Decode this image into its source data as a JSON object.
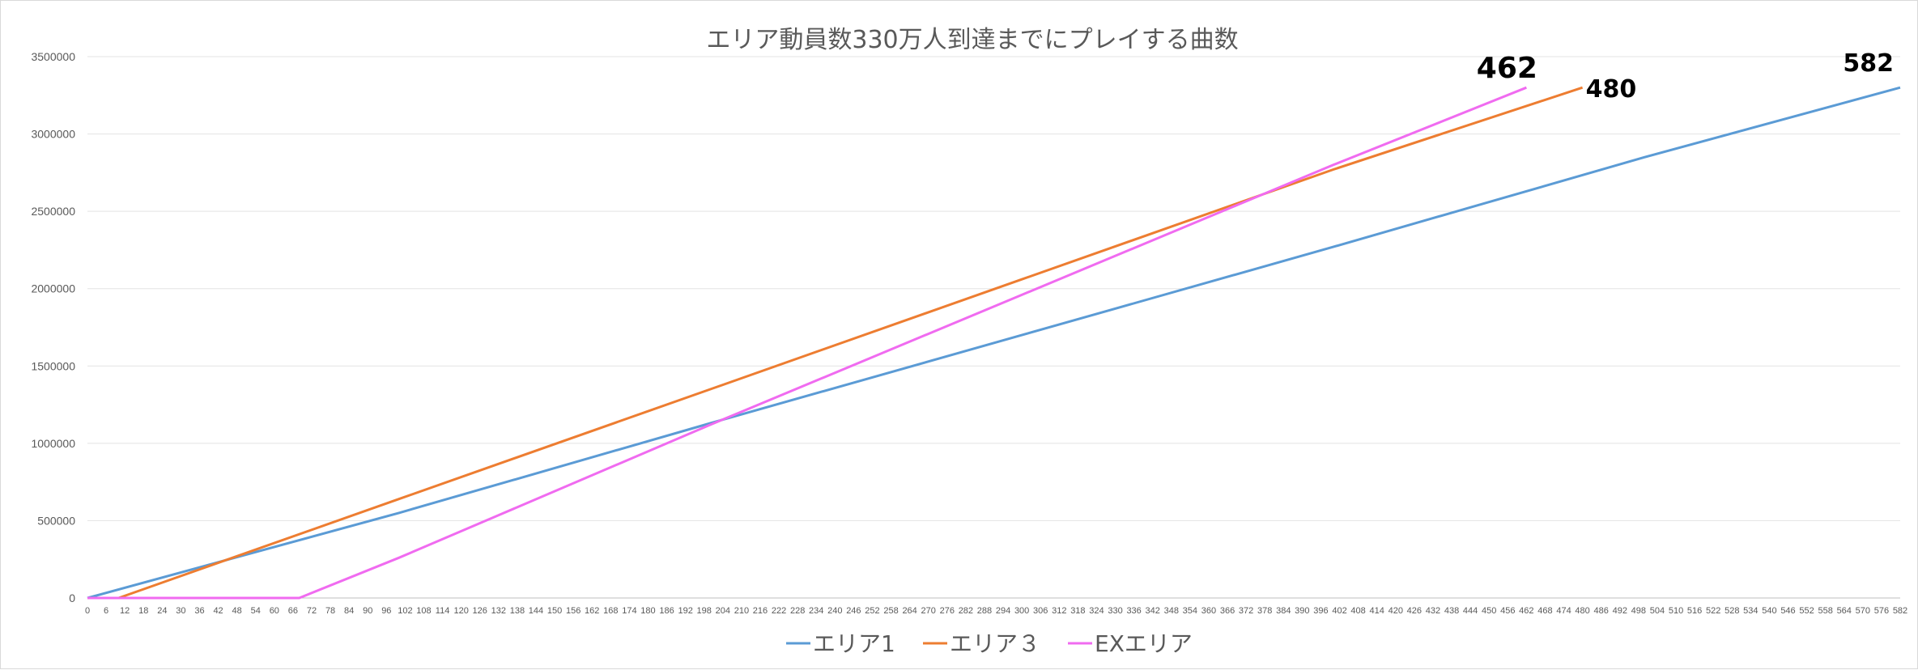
{
  "chart_data": {
    "type": "line",
    "title": "エリア動員数330万人到達までにプレイする曲数",
    "xlabel": "",
    "ylabel": "",
    "xlim": [
      0,
      582
    ],
    "ylim": [
      0,
      3500000
    ],
    "yticks": [
      0,
      500000,
      1000000,
      1500000,
      2000000,
      2500000,
      3000000,
      3500000
    ],
    "ytick_labels": [
      "0",
      "500000",
      "1000000",
      "1500000",
      "2000000",
      "2500000",
      "3000000",
      "3500000"
    ],
    "xtick_step": 6,
    "grid": "horizontal",
    "legend": "bottom-center",
    "series": [
      {
        "name": "エリア1",
        "color": "#5b9bd5",
        "points": [
          [
            0,
            0
          ],
          [
            100,
            550000
          ],
          [
            200,
            1130000
          ],
          [
            300,
            1700000
          ],
          [
            400,
            2270000
          ],
          [
            500,
            2850000
          ],
          [
            582,
            3300000
          ]
        ],
        "end_label": "582"
      },
      {
        "name": "エリア３",
        "color": "#ed7d31",
        "points": [
          [
            0,
            0
          ],
          [
            10,
            0
          ],
          [
            100,
            640000
          ],
          [
            200,
            1350000
          ],
          [
            300,
            2060000
          ],
          [
            400,
            2770000
          ],
          [
            480,
            3300000
          ]
        ],
        "end_label": "480"
      },
      {
        "name": "EXエリア",
        "color": "#f06bf0",
        "points": [
          [
            0,
            0
          ],
          [
            68,
            0
          ],
          [
            100,
            260000
          ],
          [
            200,
            1120000
          ],
          [
            300,
            1960000
          ],
          [
            400,
            2800000
          ],
          [
            462,
            3300000
          ]
        ],
        "end_label": "462"
      }
    ]
  }
}
